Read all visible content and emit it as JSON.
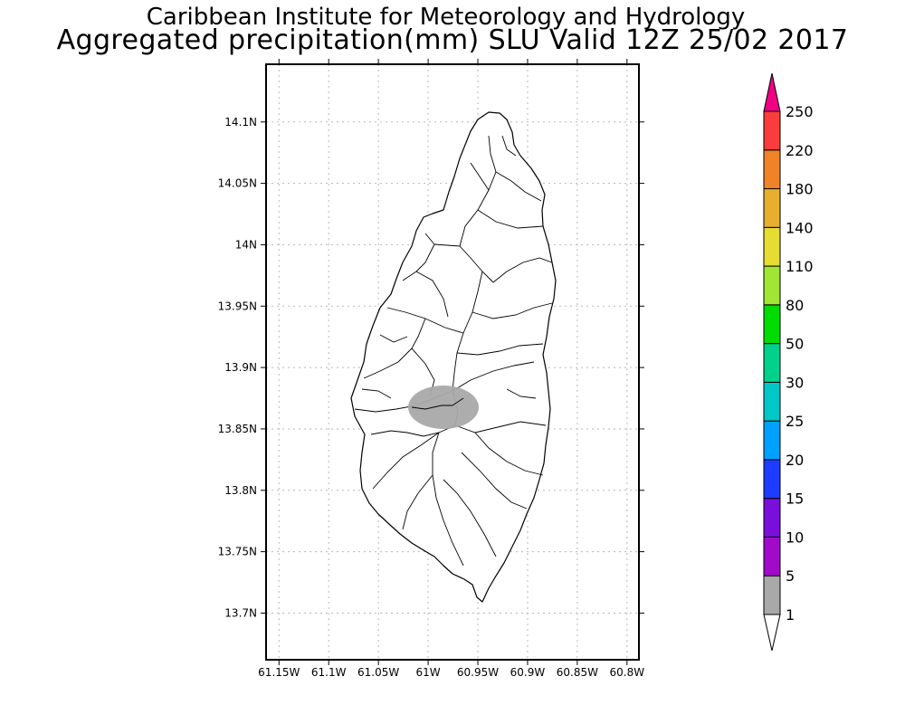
{
  "title": {
    "line1": "Caribbean Institute for Meteorology and Hydrology",
    "line2": "Aggregated precipitation(mm) SLU Valid 12Z 25/02 2017"
  },
  "map": {
    "lat_labels": [
      "14.1N",
      "14.05N",
      "14N",
      "13.95N",
      "13.9N",
      "13.85N",
      "13.8N",
      "13.75N",
      "13.7N"
    ],
    "lon_labels": [
      "61.15W",
      "61.1W",
      "61.05W",
      "61W",
      "60.95W",
      "60.9W",
      "60.85W",
      "60.8W"
    ],
    "lon_min": -61.163,
    "lon_max": -60.788,
    "lat_min": 13.662,
    "lat_max": 14.147,
    "grid": true,
    "precip_area": {
      "center_lon": -60.983,
      "center_lat": 13.869,
      "category": "1-5 mm",
      "color": "#a9a9a9"
    }
  },
  "colorbar": {
    "labels": [
      "1",
      "5",
      "10",
      "15",
      "20",
      "25",
      "30",
      "50",
      "80",
      "110",
      "140",
      "180",
      "220",
      "250"
    ],
    "colors": [
      "#ffffff",
      "#a9a9a9",
      "#a00ac8",
      "#7a0fdc",
      "#1e3cff",
      "#00a0ff",
      "#00c8c8",
      "#00d28c",
      "#00dc00",
      "#a0e632",
      "#e6dc32",
      "#e6af2d",
      "#f08228",
      "#fa3c3c",
      "#f00082"
    ]
  }
}
